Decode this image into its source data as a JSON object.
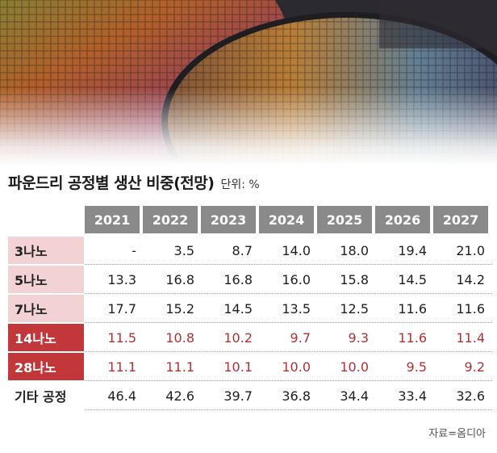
{
  "header": {
    "title": "파운드리 공정별 생산 비중(전망)",
    "unit": "단위: %"
  },
  "chart_data": {
    "type": "table",
    "title": "파운드리 공정별 생산 비중(전망)",
    "unit": "단위: %",
    "columns": [
      "2021",
      "2022",
      "2023",
      "2024",
      "2025",
      "2026",
      "2027"
    ],
    "rows": [
      {
        "label": "3나노",
        "style": "pink",
        "values": [
          "-",
          "3.5",
          "8.7",
          "14.0",
          "18.0",
          "19.4",
          "21.0"
        ]
      },
      {
        "label": "5나노",
        "style": "pink",
        "values": [
          "13.3",
          "16.8",
          "16.8",
          "16.0",
          "15.8",
          "14.5",
          "14.2"
        ]
      },
      {
        "label": "7나노",
        "style": "pink",
        "values": [
          "17.7",
          "15.2",
          "14.5",
          "13.5",
          "12.5",
          "11.6",
          "11.6"
        ]
      },
      {
        "label": "14나노",
        "style": "red",
        "values": [
          "11.5",
          "10.8",
          "10.2",
          "9.7",
          "9.3",
          "11.6",
          "11.4"
        ]
      },
      {
        "label": "28나노",
        "style": "red",
        "values": [
          "11.1",
          "11.1",
          "10.1",
          "10.0",
          "10.0",
          "9.5",
          "9.2"
        ]
      },
      {
        "label": "기타 공정",
        "style": "plain",
        "values": [
          "46.4",
          "42.6",
          "39.7",
          "36.8",
          "34.4",
          "33.4",
          "32.6"
        ]
      }
    ]
  },
  "footer": {
    "source": "자료=옴디아"
  },
  "colors": {
    "header_bg": "#8a8a8a",
    "label_pink": "#f3d2d4",
    "label_red": "#c1373a",
    "highlight_text": "#b23034"
  }
}
